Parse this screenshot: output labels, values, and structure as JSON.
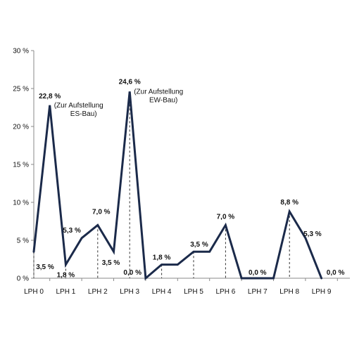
{
  "chart_data": {
    "type": "line",
    "title": "",
    "xlabel": "",
    "ylabel": "",
    "ylim": [
      0,
      30
    ],
    "y_ticks": [
      "0 %",
      "5 %",
      "10 %",
      "15 %",
      "20 %",
      "25 %",
      "30 %"
    ],
    "categories": [
      "LPH 0",
      "LPH 1",
      "LPH 2",
      "LPH 3",
      "LPH 4",
      "LPH 5",
      "LPH 6",
      "LPH 7",
      "LPH 8",
      "LPH 9"
    ],
    "x": [
      0,
      0.5,
      1,
      1.5,
      2,
      2.5,
      3,
      3.5,
      4,
      4.5,
      5,
      5.5,
      6,
      6.5,
      7,
      7.5,
      8,
      8.5,
      9
    ],
    "values": [
      3.5,
      22.8,
      1.8,
      5.3,
      7.0,
      3.5,
      24.6,
      0.0,
      1.8,
      1.8,
      3.5,
      3.5,
      7.0,
      0.0,
      0.0,
      0.0,
      8.8,
      5.3,
      0.0
    ],
    "line_color": "#1b2a4a",
    "grid": false,
    "dashed_drop_lines_at_categories": true,
    "data_labels": [
      {
        "text": "3,5 %",
        "x": 0,
        "y": 3.5
      },
      {
        "text": "22,8 %",
        "x": 0.5,
        "y": 22.8
      },
      {
        "text": "1,8 %",
        "x": 1,
        "y": 1.8
      },
      {
        "text": "5,3 %",
        "x": 1.5,
        "y": 5.3
      },
      {
        "text": "7,0 %",
        "x": 2,
        "y": 7.0
      },
      {
        "text": "3,5 %",
        "x": 2.5,
        "y": 3.5
      },
      {
        "text": "24,6 %",
        "x": 3,
        "y": 24.6
      },
      {
        "text": "0,0 %",
        "x": 3,
        "y": 0.0
      },
      {
        "text": "1,8 %",
        "x": 4,
        "y": 1.8
      },
      {
        "text": "3,5 %",
        "x": 5,
        "y": 3.5
      },
      {
        "text": "7,0 %",
        "x": 6,
        "y": 7.0
      },
      {
        "text": "0,0 %",
        "x": 7,
        "y": 0.0
      },
      {
        "text": "8,8 %",
        "x": 8,
        "y": 8.8
      },
      {
        "text": "5,3 %",
        "x": 8.5,
        "y": 5.3
      },
      {
        "text": "0,0 %",
        "x": 9,
        "y": 0.0
      }
    ],
    "annotations": [
      {
        "lines": [
          "(Zur Aufstellung",
          "ES-Bau)"
        ],
        "x": 0.5,
        "y": 22.8
      },
      {
        "lines": [
          "(Zur Aufstellung",
          "EW-Bau)"
        ],
        "x": 3,
        "y": 24.6
      }
    ]
  }
}
